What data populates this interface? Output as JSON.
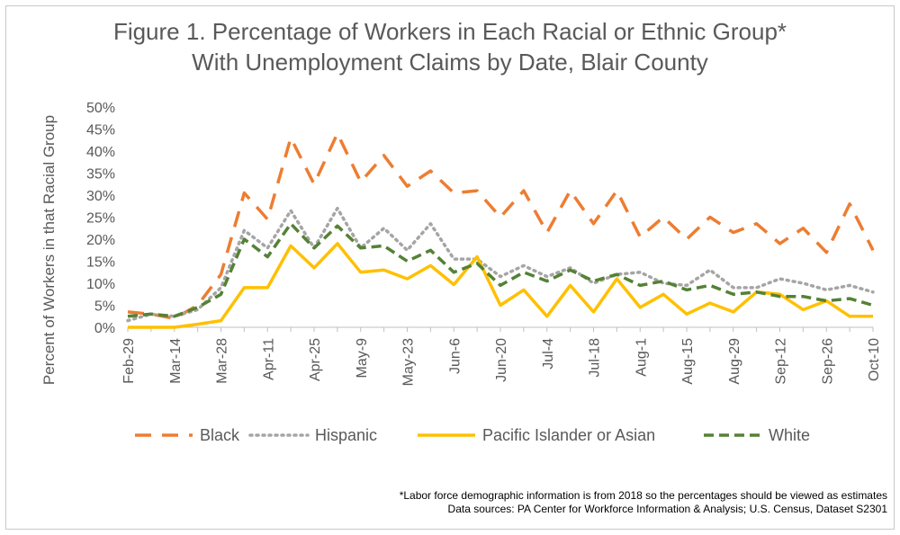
{
  "chart_data": {
    "type": "line",
    "title_line1": "Figure 1. Percentage of Workers in Each Racial or Ethnic Group*",
    "title_line2": "With Unemployment Claims by Date, Blair County",
    "ylabel": "Percent of Workers in that Racial Group",
    "xlabel": "",
    "ylim": [
      0,
      50
    ],
    "yticks": [
      "0%",
      "5%",
      "10%",
      "15%",
      "20%",
      "25%",
      "30%",
      "35%",
      "40%",
      "45%",
      "50%"
    ],
    "x_tick_labels": [
      "Feb-29",
      "Mar-14",
      "Mar-28",
      "Apr-11",
      "Apr-25",
      "May-9",
      "May-23",
      "Jun-6",
      "Jun-20",
      "Jul-4",
      "Jul-18",
      "Aug-1",
      "Aug-15",
      "Aug-29",
      "Sep-12",
      "Sep-26",
      "Oct-10"
    ],
    "x": [
      "Feb-29",
      "Mar-7",
      "Mar-14",
      "Mar-21",
      "Mar-28",
      "Apr-4",
      "Apr-11",
      "Apr-18",
      "Apr-25",
      "May-2",
      "May-9",
      "May-16",
      "May-23",
      "May-30",
      "Jun-6",
      "Jun-13",
      "Jun-20",
      "Jun-27",
      "Jul-4",
      "Jul-11",
      "Jul-18",
      "Jul-25",
      "Aug-1",
      "Aug-8",
      "Aug-15",
      "Aug-22",
      "Aug-29",
      "Sep-5",
      "Sep-12",
      "Sep-19",
      "Sep-26",
      "Oct-3",
      "Oct-10"
    ],
    "grid": false,
    "legend_position": "bottom",
    "series": [
      {
        "name": "Black",
        "color": "#ED7D31",
        "style": "long-dash",
        "values": [
          3.5,
          3.0,
          2.0,
          5.0,
          12.0,
          30.5,
          24.5,
          43.0,
          32.5,
          44.0,
          33.0,
          39.0,
          32.0,
          35.5,
          30.5,
          31.0,
          25.0,
          31.0,
          21.5,
          31.0,
          23.5,
          31.0,
          20.5,
          25.0,
          20.0,
          25.0,
          21.5,
          23.5,
          19.0,
          22.5,
          17.0,
          28.0,
          17.5
        ]
      },
      {
        "name": "Hispanic",
        "color": "#A5A5A5",
        "style": "dotted",
        "values": [
          1.5,
          3.0,
          2.5,
          4.0,
          9.0,
          22.0,
          18.0,
          26.5,
          18.0,
          27.0,
          18.0,
          22.5,
          17.5,
          23.5,
          15.5,
          15.5,
          11.5,
          14.0,
          11.5,
          13.5,
          10.0,
          12.0,
          12.5,
          10.0,
          9.5,
          13.0,
          9.0,
          9.0,
          11.0,
          10.0,
          8.5,
          9.5,
          8.0
        ]
      },
      {
        "name": "Pacific Islander or Asian",
        "color": "#FFC000",
        "style": "solid",
        "values": [
          0.0,
          0.0,
          0.0,
          0.7,
          1.5,
          9.0,
          9.0,
          18.5,
          13.5,
          19.0,
          12.5,
          13.0,
          11.0,
          14.0,
          9.7,
          16.0,
          5.0,
          8.5,
          2.5,
          9.5,
          3.5,
          11.0,
          4.5,
          7.5,
          3.0,
          5.5,
          3.5,
          8.0,
          7.5,
          4.0,
          6.0,
          2.5,
          2.5
        ]
      },
      {
        "name": "White",
        "color": "#548235",
        "style": "dashed",
        "values": [
          2.5,
          3.0,
          2.5,
          4.5,
          7.5,
          20.0,
          16.0,
          23.5,
          18.0,
          23.0,
          18.0,
          18.5,
          15.0,
          17.5,
          12.5,
          14.5,
          9.5,
          12.5,
          10.5,
          13.0,
          10.5,
          12.0,
          9.5,
          10.5,
          8.5,
          9.5,
          7.5,
          8.0,
          7.0,
          7.0,
          6.0,
          6.5,
          5.0
        ]
      }
    ]
  },
  "footnotes": {
    "line1": "*Labor force demographic information is from 2018 so the percentages should be viewed as estimates",
    "line2": "Data sources: PA  Center for Workforce Information & Analysis; U.S. Census, Dataset S2301"
  }
}
